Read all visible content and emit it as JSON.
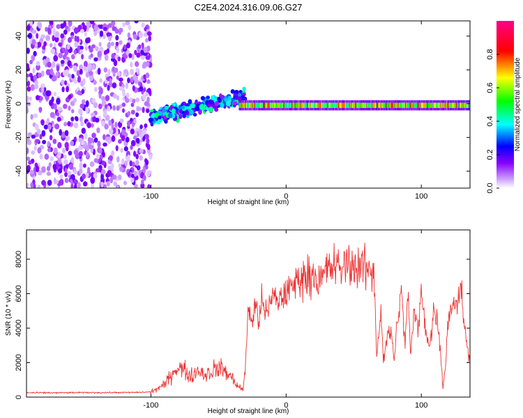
{
  "title": "C2E4.2024.316.09.06.G27",
  "chart_data": [
    {
      "type": "heatmap",
      "xlabel": "Height of straight line (km)",
      "ylabel": "Frequency (Hz)",
      "xlim": [
        -192,
        136
      ],
      "ylim": [
        -50,
        49
      ],
      "xticks": [
        -100,
        0,
        100
      ],
      "yticks": [
        -40,
        -20,
        0,
        20,
        40
      ],
      "xtick_labels": [
        "-100",
        "0",
        "100"
      ],
      "ytick_labels": [
        "-40",
        "-20",
        "0",
        "20",
        "40"
      ],
      "colorbar": {
        "label": "Normalized spectral amplitude",
        "range": [
          0,
          1
        ],
        "ticks": [
          0.0,
          0.2,
          0.4,
          0.6,
          0.8
        ],
        "tick_labels": [
          "0.0",
          "0.2",
          "0.4",
          "0.6",
          "0.8"
        ],
        "colors": [
          "#ffffff",
          "#8800ff",
          "#0000ff",
          "#00ffff",
          "#00ff00",
          "#ffff00",
          "#ff0000",
          "#ff0088"
        ]
      },
      "features": [
        {
          "desc": "broadband noise region",
          "x_range": [
            -192,
            -100
          ],
          "y_range": [
            -50,
            49
          ],
          "level": 0.15
        },
        {
          "desc": "scattered signal cluster",
          "x_range": [
            -100,
            -30
          ],
          "y_center": 3,
          "y_spread": 6,
          "level": 0.45
        },
        {
          "desc": "narrow tone",
          "x_range": [
            -35,
            136
          ],
          "y_center": -1,
          "y_spread": 1.5,
          "level": 0.8
        }
      ]
    },
    {
      "type": "line",
      "xlabel": "Height of straight line (km)",
      "ylabel": "SNR (10 * v/v)",
      "xlim": [
        -192,
        136
      ],
      "ylim": [
        0,
        9700
      ],
      "xticks": [
        -100,
        0,
        100
      ],
      "yticks": [
        0,
        2000,
        4000,
        6000,
        8000
      ],
      "xtick_labels": [
        "-100",
        "0",
        "100"
      ],
      "ytick_labels": [
        "0",
        "2000",
        "4000",
        "6000",
        "8000"
      ],
      "series": [
        {
          "color": "#ee3333",
          "x": [
            -192,
            -170,
            -150,
            -130,
            -110,
            -100,
            -90,
            -85,
            -80,
            -75,
            -70,
            -65,
            -60,
            -55,
            -50,
            -45,
            -40,
            -35,
            -32,
            -30,
            -28,
            -25,
            -22,
            -20,
            -18,
            -15,
            -12,
            -10,
            -5,
            0,
            5,
            10,
            15,
            20,
            25,
            30,
            35,
            40,
            45,
            50,
            55,
            60,
            62,
            65,
            67,
            70,
            72,
            75,
            78,
            80,
            82,
            85,
            88,
            90,
            92,
            95,
            98,
            100,
            103,
            106,
            110,
            114,
            116,
            118,
            120,
            125,
            130,
            133,
            136
          ],
          "values": [
            250,
            250,
            260,
            260,
            270,
            300,
            700,
            1300,
            1800,
            1500,
            1200,
            1600,
            1300,
            1500,
            1700,
            1500,
            1100,
            600,
            400,
            1800,
            5200,
            4400,
            5600,
            3800,
            6200,
            4700,
            5300,
            5800,
            5600,
            6100,
            6400,
            7000,
            6900,
            7300,
            6600,
            7400,
            7600,
            7400,
            7800,
            7600,
            7600,
            7400,
            7200,
            7300,
            2500,
            5000,
            2200,
            3500,
            3800,
            2000,
            4200,
            6200,
            3000,
            6400,
            2400,
            5000,
            3800,
            6300,
            4200,
            2800,
            5400,
            3000,
            500,
            2000,
            4800,
            5600,
            6000,
            3200,
            2200
          ]
        }
      ]
    }
  ]
}
